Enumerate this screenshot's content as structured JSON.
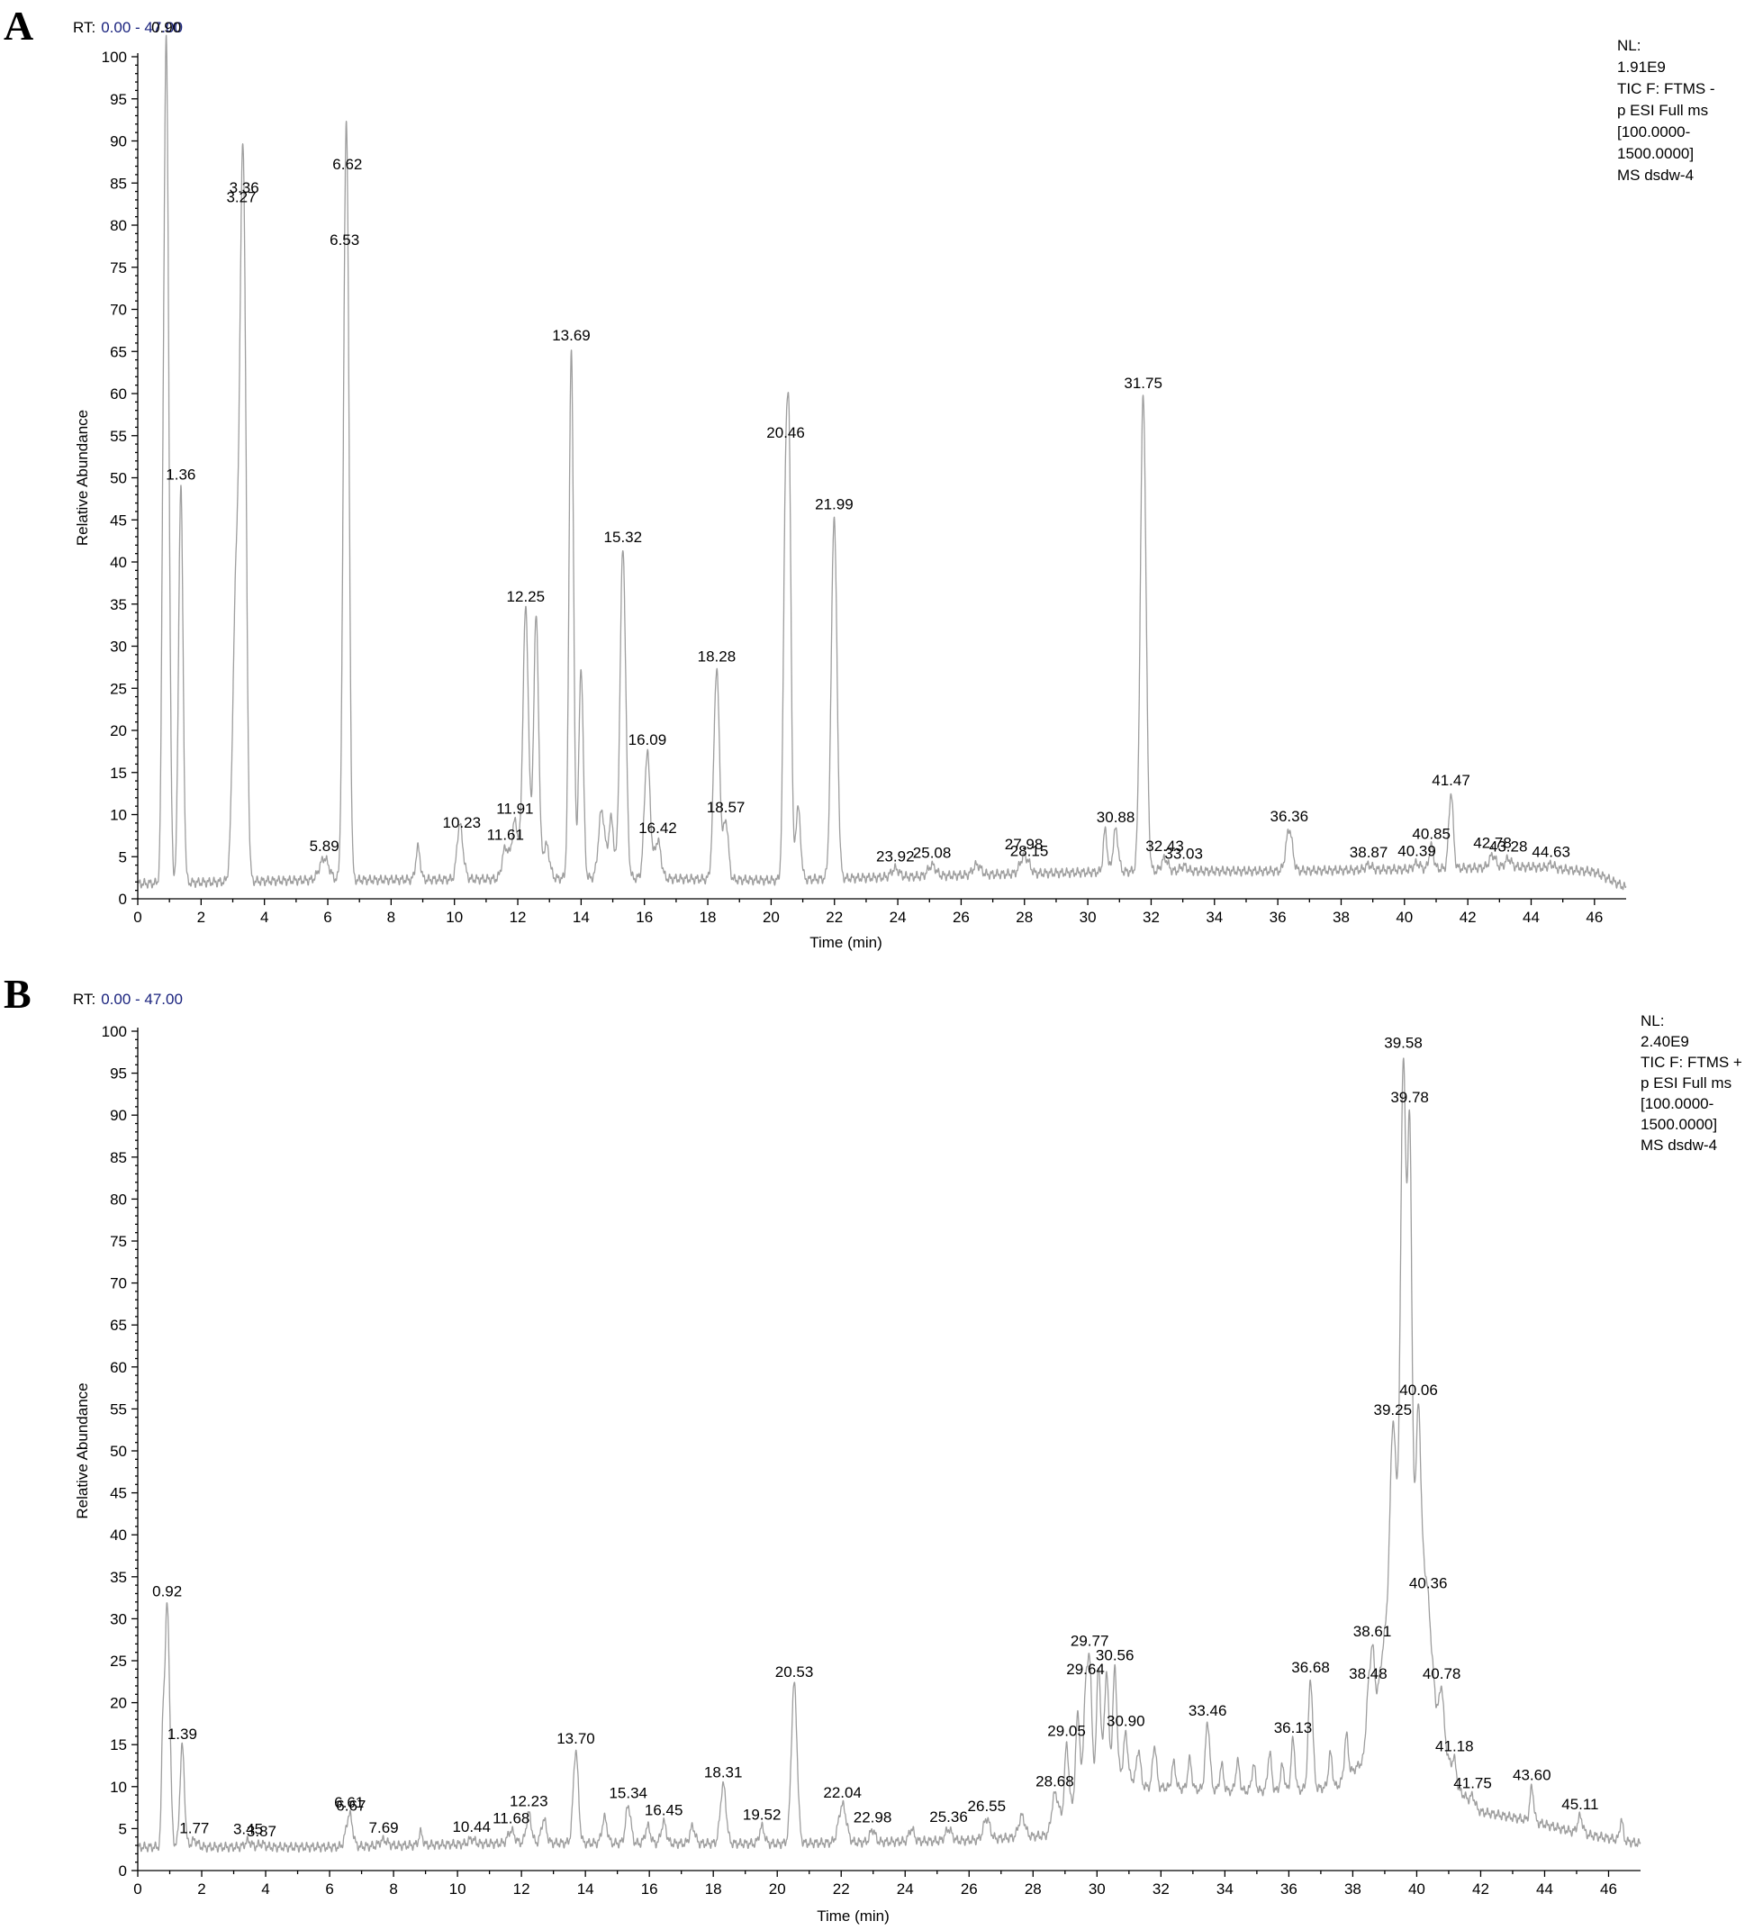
{
  "chart_data": [
    {
      "panel": "A",
      "type": "line",
      "rt_label": "RT:",
      "rt_range_text": "0.00 - 47.00",
      "xlabel": "Time (min)",
      "ylabel": "Relative Abundance",
      "xlim": [
        0,
        47
      ],
      "ylim": [
        0,
        100
      ],
      "xticks": [
        "0",
        "2",
        "4",
        "6",
        "8",
        "10",
        "12",
        "14",
        "16",
        "18",
        "20",
        "22",
        "24",
        "26",
        "28",
        "30",
        "32",
        "34",
        "36",
        "38",
        "40",
        "42",
        "44",
        "46"
      ],
      "yticks": [
        "0",
        "5",
        "10",
        "15",
        "20",
        "25",
        "30",
        "35",
        "40",
        "45",
        "50",
        "55",
        "60",
        "65",
        "70",
        "75",
        "80",
        "85",
        "90",
        "95",
        "100"
      ],
      "info": [
        "NL:",
        "1.91E9",
        "TIC F: FTMS -",
        "p ESI Full ms",
        "[100.0000-",
        "1500.0000]",
        "MS dsdw-4"
      ],
      "baseline": [
        [
          0,
          1.8
        ],
        [
          5,
          2.2
        ],
        [
          10,
          2.3
        ],
        [
          15,
          2.5
        ],
        [
          20,
          2.2
        ],
        [
          24,
          2.6
        ],
        [
          28,
          3.0
        ],
        [
          32,
          3.3
        ],
        [
          36,
          3.3
        ],
        [
          40,
          3.5
        ],
        [
          44,
          3.8
        ],
        [
          46,
          3.2
        ],
        [
          47,
          1.3
        ]
      ],
      "peaks": [
        {
          "rt": 0.78,
          "h": 13,
          "w": 0.04,
          "label": ""
        },
        {
          "rt": 0.9,
          "h": 100,
          "w": 0.08,
          "label": "0.90"
        },
        {
          "rt": 1.36,
          "h": 47,
          "w": 0.07,
          "label": "1.36"
        },
        {
          "rt": 3.1,
          "h": 34,
          "w": 0.1,
          "label": ""
        },
        {
          "rt": 3.27,
          "h": 41,
          "w": 0.08,
          "label": "3.27"
        },
        {
          "rt": 3.36,
          "h": 58,
          "w": 0.08,
          "label": "3.36"
        },
        {
          "rt": 5.89,
          "h": 2.6,
          "w": 0.15,
          "label": "5.89"
        },
        {
          "rt": 6.53,
          "h": 47,
          "w": 0.07,
          "label": "6.53"
        },
        {
          "rt": 6.62,
          "h": 63,
          "w": 0.07,
          "label": "6.62"
        },
        {
          "rt": 8.85,
          "h": 3.8,
          "w": 0.07,
          "label": ""
        },
        {
          "rt": 10.23,
          "h": 2.5,
          "w": 0.1,
          "label": "10.23"
        },
        {
          "rt": 10.15,
          "h": 4.6,
          "w": 0.08,
          "label": ""
        },
        {
          "rt": 11.61,
          "h": 3.7,
          "w": 0.1,
          "label": "11.61"
        },
        {
          "rt": 11.91,
          "h": 6.8,
          "w": 0.1,
          "label": "11.91"
        },
        {
          "rt": 12.25,
          "h": 32,
          "w": 0.09,
          "label": "12.25"
        },
        {
          "rt": 12.58,
          "h": 31,
          "w": 0.08,
          "label": ""
        },
        {
          "rt": 12.9,
          "h": 4.0,
          "w": 0.1,
          "label": ""
        },
        {
          "rt": 13.69,
          "h": 63,
          "w": 0.07,
          "label": "13.69"
        },
        {
          "rt": 14.0,
          "h": 25,
          "w": 0.07,
          "label": ""
        },
        {
          "rt": 14.65,
          "h": 8,
          "w": 0.1,
          "label": ""
        },
        {
          "rt": 14.95,
          "h": 7,
          "w": 0.08,
          "label": ""
        },
        {
          "rt": 15.32,
          "h": 39,
          "w": 0.09,
          "label": "15.32"
        },
        {
          "rt": 16.09,
          "h": 15,
          "w": 0.09,
          "label": "16.09"
        },
        {
          "rt": 16.42,
          "h": 4.5,
          "w": 0.1,
          "label": "16.42"
        },
        {
          "rt": 18.28,
          "h": 25,
          "w": 0.09,
          "label": "18.28"
        },
        {
          "rt": 18.57,
          "h": 7,
          "w": 0.08,
          "label": "18.57"
        },
        {
          "rt": 20.46,
          "h": 46,
          "w": 0.07,
          "label": "20.46"
        },
        {
          "rt": 20.58,
          "h": 42,
          "w": 0.06,
          "label": ""
        },
        {
          "rt": 20.85,
          "h": 8.5,
          "w": 0.08,
          "label": ""
        },
        {
          "rt": 21.99,
          "h": 43,
          "w": 0.09,
          "label": "21.99"
        },
        {
          "rt": 23.92,
          "h": 1.0,
          "w": 0.12,
          "label": "23.92"
        },
        {
          "rt": 25.08,
          "h": 1.3,
          "w": 0.12,
          "label": "25.08"
        },
        {
          "rt": 26.5,
          "h": 1.2,
          "w": 0.12,
          "label": ""
        },
        {
          "rt": 27.98,
          "h": 2.0,
          "w": 0.12,
          "label": "27.98"
        },
        {
          "rt": 28.15,
          "h": 0.5,
          "w": 0.08,
          "label": "28.15"
        },
        {
          "rt": 30.55,
          "h": 5,
          "w": 0.06,
          "label": ""
        },
        {
          "rt": 30.88,
          "h": 5,
          "w": 0.08,
          "label": "30.88"
        },
        {
          "rt": 31.75,
          "h": 56.5,
          "w": 0.09,
          "label": "31.75"
        },
        {
          "rt": 32.43,
          "h": 1.5,
          "w": 0.1,
          "label": "32.43"
        },
        {
          "rt": 33.03,
          "h": 0.6,
          "w": 0.1,
          "label": "33.03"
        },
        {
          "rt": 36.36,
          "h": 5,
          "w": 0.1,
          "label": "36.36"
        },
        {
          "rt": 38.87,
          "h": 0.6,
          "w": 0.1,
          "label": "38.87"
        },
        {
          "rt": 40.39,
          "h": 0.7,
          "w": 0.1,
          "label": "40.39"
        },
        {
          "rt": 40.85,
          "h": 2.7,
          "w": 0.07,
          "label": "40.85"
        },
        {
          "rt": 41.47,
          "h": 9,
          "w": 0.07,
          "label": "41.47"
        },
        {
          "rt": 42.78,
          "h": 1.5,
          "w": 0.1,
          "label": "42.78"
        },
        {
          "rt": 43.28,
          "h": 1.0,
          "w": 0.1,
          "label": "43.28"
        },
        {
          "rt": 44.63,
          "h": 0.5,
          "w": 0.1,
          "label": "44.63"
        }
      ]
    },
    {
      "panel": "B",
      "type": "line",
      "rt_label": "RT:",
      "rt_range_text": "0.00 - 47.00",
      "xlabel": "Time (min)",
      "ylabel": "Relative Abundance",
      "xlim": [
        0,
        47
      ],
      "ylim": [
        0,
        100
      ],
      "xticks": [
        "0",
        "2",
        "4",
        "6",
        "8",
        "10",
        "12",
        "14",
        "16",
        "18",
        "20",
        "22",
        "24",
        "26",
        "28",
        "30",
        "32",
        "34",
        "36",
        "38",
        "40",
        "42",
        "44",
        "46"
      ],
      "yticks": [
        "0",
        "5",
        "10",
        "15",
        "20",
        "25",
        "30",
        "35",
        "40",
        "45",
        "50",
        "55",
        "60",
        "65",
        "70",
        "75",
        "80",
        "85",
        "90",
        "95",
        "100"
      ],
      "info": [
        "NL:",
        "2.40E9",
        "TIC F: FTMS +",
        "p ESI Full ms",
        "[100.0000-",
        "1500.0000]",
        "MS dsdw-4"
      ],
      "baseline": [
        [
          0,
          2.8
        ],
        [
          6,
          2.8
        ],
        [
          12,
          3.3
        ],
        [
          20,
          3.2
        ],
        [
          26,
          3.6
        ],
        [
          28.5,
          4.2
        ],
        [
          29.2,
          8
        ],
        [
          30.2,
          13
        ],
        [
          31.5,
          10
        ],
        [
          34,
          9.5
        ],
        [
          36,
          9.5
        ],
        [
          37.5,
          10
        ],
        [
          38.3,
          13
        ],
        [
          38.8,
          22
        ],
        [
          39.3,
          38
        ],
        [
          39.7,
          48
        ],
        [
          40.2,
          38
        ],
        [
          40.6,
          20
        ],
        [
          41.2,
          10
        ],
        [
          42,
          7
        ],
        [
          43.5,
          6
        ],
        [
          45,
          4.5
        ],
        [
          47,
          3.2
        ]
      ],
      "peaks": [
        {
          "rt": 0.78,
          "h": 10,
          "w": 0.04,
          "label": ""
        },
        {
          "rt": 0.92,
          "h": 29,
          "w": 0.08,
          "label": "0.92"
        },
        {
          "rt": 1.39,
          "h": 12,
          "w": 0.07,
          "label": "1.39"
        },
        {
          "rt": 1.77,
          "h": 0.8,
          "w": 0.1,
          "label": "1.77"
        },
        {
          "rt": 3.45,
          "h": 0.7,
          "w": 0.1,
          "label": "3.45"
        },
        {
          "rt": 3.87,
          "h": 0.4,
          "w": 0.1,
          "label": "3.87"
        },
        {
          "rt": 6.61,
          "h": 3.5,
          "w": 0.1,
          "label": "6.61"
        },
        {
          "rt": 6.67,
          "h": 0.5,
          "w": 0.06,
          "label": "6.67"
        },
        {
          "rt": 7.69,
          "h": 0.7,
          "w": 0.12,
          "label": "7.69"
        },
        {
          "rt": 8.85,
          "h": 1.5,
          "w": 0.06,
          "label": ""
        },
        {
          "rt": 10.44,
          "h": 0.6,
          "w": 0.1,
          "label": "10.44"
        },
        {
          "rt": 11.68,
          "h": 1.5,
          "w": 0.1,
          "label": "11.68"
        },
        {
          "rt": 12.23,
          "h": 3.5,
          "w": 0.08,
          "label": "12.23"
        },
        {
          "rt": 12.7,
          "h": 2.8,
          "w": 0.08,
          "label": ""
        },
        {
          "rt": 13.7,
          "h": 11,
          "w": 0.08,
          "label": "13.70"
        },
        {
          "rt": 14.6,
          "h": 3.0,
          "w": 0.08,
          "label": ""
        },
        {
          "rt": 15.34,
          "h": 4.5,
          "w": 0.08,
          "label": "15.34"
        },
        {
          "rt": 15.95,
          "h": 2.0,
          "w": 0.08,
          "label": ""
        },
        {
          "rt": 16.45,
          "h": 2.5,
          "w": 0.08,
          "label": "16.45"
        },
        {
          "rt": 17.35,
          "h": 2.0,
          "w": 0.08,
          "label": ""
        },
        {
          "rt": 18.31,
          "h": 7,
          "w": 0.09,
          "label": "18.31"
        },
        {
          "rt": 19.52,
          "h": 2.0,
          "w": 0.08,
          "label": "19.52"
        },
        {
          "rt": 20.53,
          "h": 19,
          "w": 0.09,
          "label": "20.53"
        },
        {
          "rt": 22.04,
          "h": 4.5,
          "w": 0.12,
          "label": "22.04"
        },
        {
          "rt": 22.98,
          "h": 1.5,
          "w": 0.08,
          "label": "22.98"
        },
        {
          "rt": 24.2,
          "h": 1.5,
          "w": 0.08,
          "label": ""
        },
        {
          "rt": 25.36,
          "h": 1.4,
          "w": 0.1,
          "label": "25.36"
        },
        {
          "rt": 26.55,
          "h": 2.5,
          "w": 0.1,
          "label": "26.55"
        },
        {
          "rt": 27.65,
          "h": 2.5,
          "w": 0.1,
          "label": ""
        },
        {
          "rt": 28.68,
          "h": 4.0,
          "w": 0.1,
          "label": "28.68"
        },
        {
          "rt": 29.05,
          "h": 8,
          "w": 0.06,
          "label": "29.05"
        },
        {
          "rt": 29.4,
          "h": 10,
          "w": 0.06,
          "label": ""
        },
        {
          "rt": 29.64,
          "h": 11,
          "w": 0.06,
          "label": "29.64"
        },
        {
          "rt": 29.77,
          "h": 14,
          "w": 0.06,
          "label": "29.77"
        },
        {
          "rt": 30.05,
          "h": 12,
          "w": 0.06,
          "label": ""
        },
        {
          "rt": 30.3,
          "h": 11,
          "w": 0.06,
          "label": ""
        },
        {
          "rt": 30.56,
          "h": 12,
          "w": 0.06,
          "label": "30.56"
        },
        {
          "rt": 30.9,
          "h": 5,
          "w": 0.06,
          "label": "30.90"
        },
        {
          "rt": 31.3,
          "h": 4,
          "w": 0.06,
          "label": ""
        },
        {
          "rt": 31.8,
          "h": 5,
          "w": 0.06,
          "label": ""
        },
        {
          "rt": 32.4,
          "h": 3,
          "w": 0.06,
          "label": ""
        },
        {
          "rt": 32.9,
          "h": 3.5,
          "w": 0.06,
          "label": ""
        },
        {
          "rt": 33.46,
          "h": 8,
          "w": 0.07,
          "label": "33.46"
        },
        {
          "rt": 33.9,
          "h": 3,
          "w": 0.06,
          "label": ""
        },
        {
          "rt": 34.4,
          "h": 3.5,
          "w": 0.06,
          "label": ""
        },
        {
          "rt": 34.9,
          "h": 3,
          "w": 0.06,
          "label": ""
        },
        {
          "rt": 35.4,
          "h": 4.5,
          "w": 0.06,
          "label": ""
        },
        {
          "rt": 35.8,
          "h": 3,
          "w": 0.06,
          "label": ""
        },
        {
          "rt": 36.13,
          "h": 6,
          "w": 0.06,
          "label": "36.13"
        },
        {
          "rt": 36.68,
          "h": 13,
          "w": 0.07,
          "label": "36.68"
        },
        {
          "rt": 37.3,
          "h": 4,
          "w": 0.06,
          "label": ""
        },
        {
          "rt": 37.8,
          "h": 5,
          "w": 0.06,
          "label": ""
        },
        {
          "rt": 38.48,
          "h": 5,
          "w": 0.06,
          "label": "38.48"
        },
        {
          "rt": 38.61,
          "h": 8,
          "w": 0.06,
          "label": "38.61"
        },
        {
          "rt": 39.25,
          "h": 17,
          "w": 0.08,
          "label": "39.25"
        },
        {
          "rt": 39.58,
          "h": 52,
          "w": 0.08,
          "label": "39.58"
        },
        {
          "rt": 39.78,
          "h": 42,
          "w": 0.06,
          "label": "39.78"
        },
        {
          "rt": 40.06,
          "h": 15,
          "w": 0.06,
          "label": "40.06"
        },
        {
          "rt": 40.36,
          "h": 2,
          "w": 0.06,
          "label": "40.36"
        },
        {
          "rt": 40.78,
          "h": 5,
          "w": 0.06,
          "label": "40.78"
        },
        {
          "rt": 41.18,
          "h": 3,
          "w": 0.06,
          "label": "41.18"
        },
        {
          "rt": 41.75,
          "h": 1,
          "w": 0.06,
          "label": "41.75"
        },
        {
          "rt": 43.6,
          "h": 4,
          "w": 0.06,
          "label": "43.60"
        },
        {
          "rt": 45.11,
          "h": 2,
          "w": 0.08,
          "label": "45.11"
        },
        {
          "rt": 46.4,
          "h": 2.5,
          "w": 0.05,
          "label": ""
        }
      ]
    }
  ],
  "panels": [
    {
      "letter": "A"
    },
    {
      "letter": "B"
    }
  ]
}
